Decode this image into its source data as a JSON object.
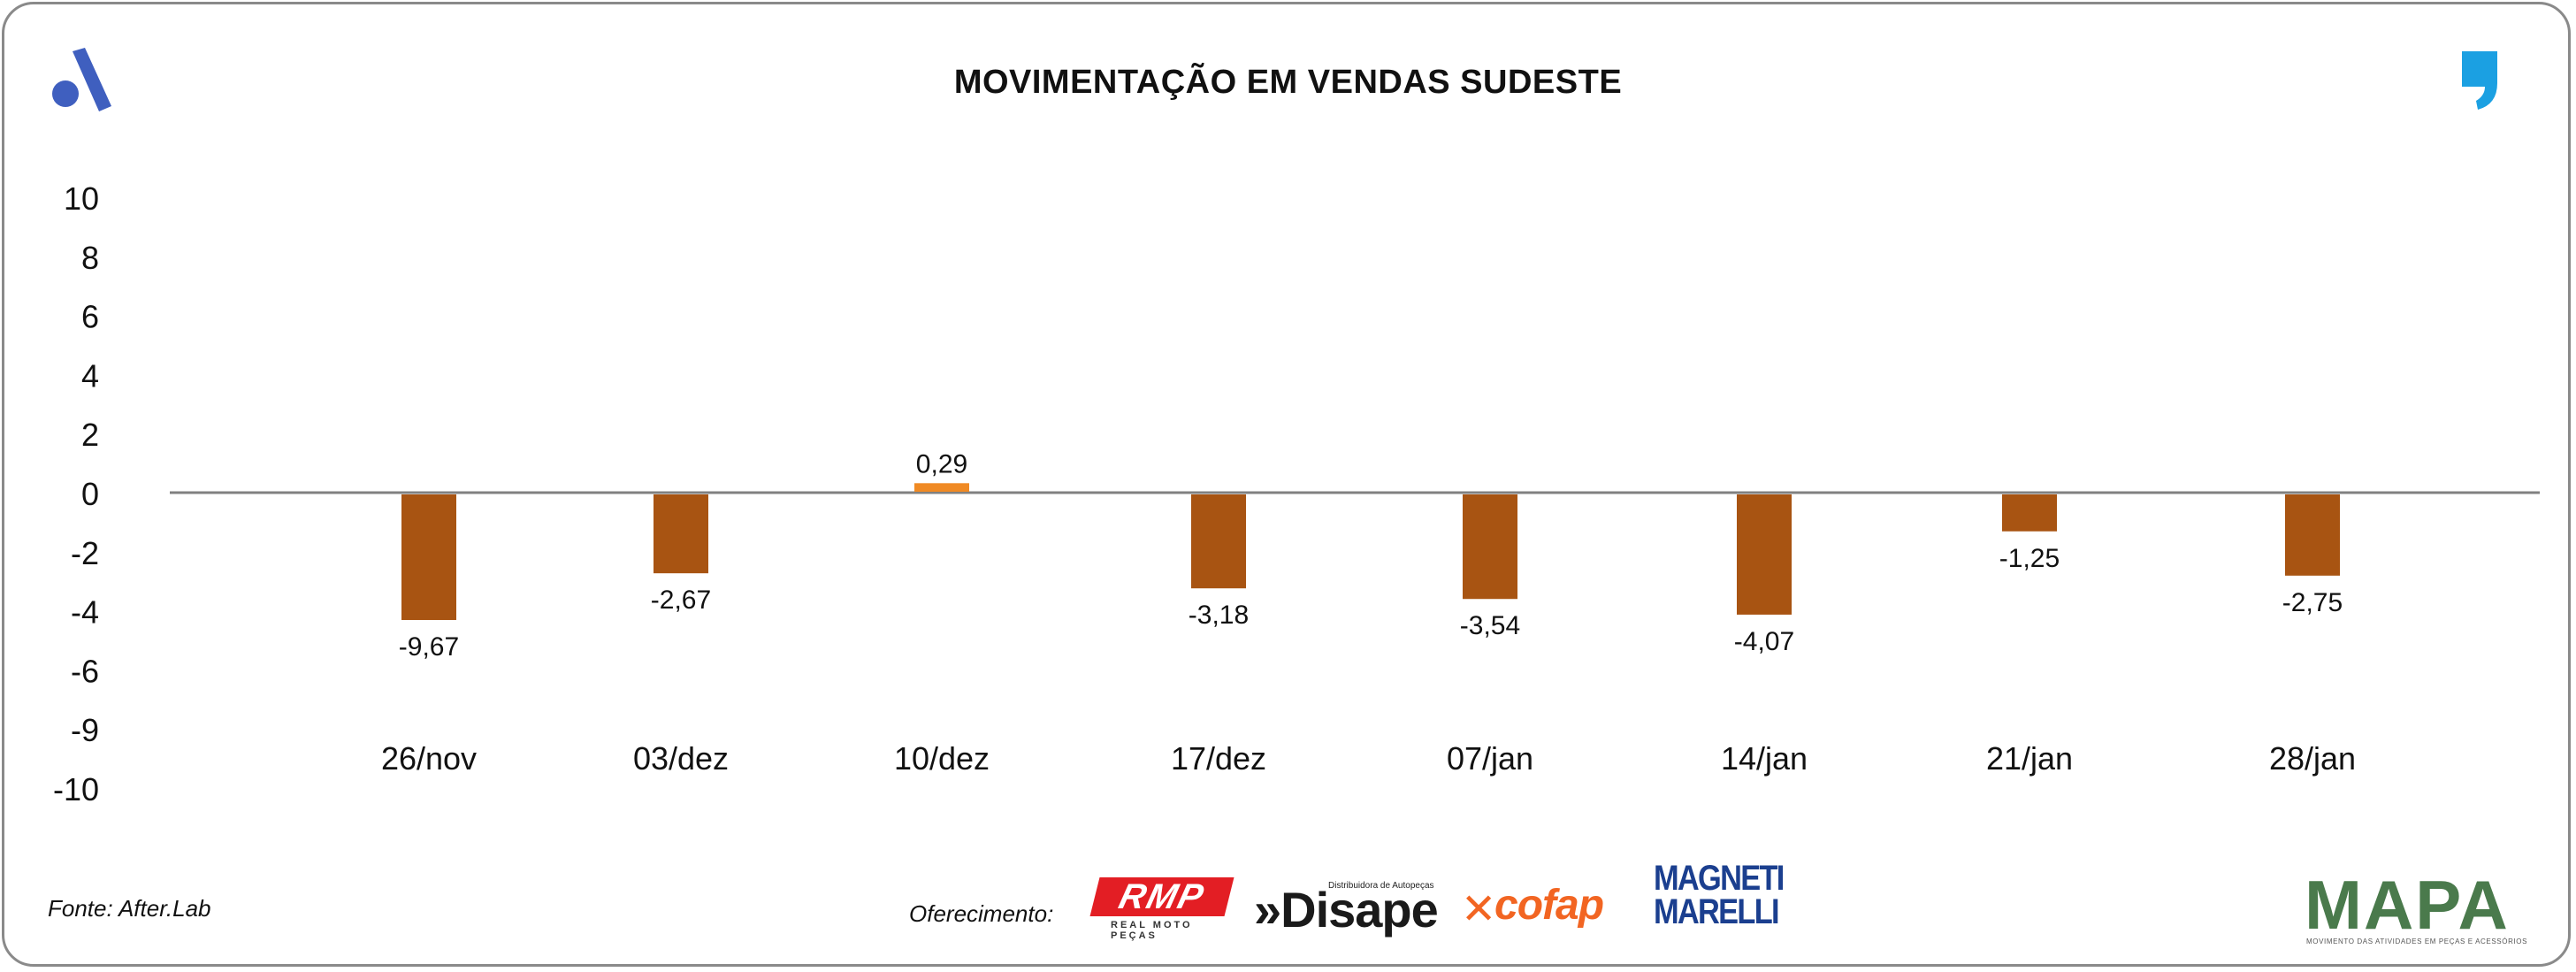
{
  "header": {
    "title": "MOVIMENTAÇÃO EM VENDAS SUDESTE"
  },
  "footer": {
    "source": "Fonte: After.Lab",
    "sponsor_label": "Oferecimento:",
    "sponsors": {
      "rmp": "RMP",
      "rmp_sub": "REAL MOTO PEÇAS",
      "disape": "»Disape",
      "disape_sub": "Distribuidora de Autopeças",
      "cofap": "cofap",
      "magneti_1": "MAGNETI",
      "magneti_2": "MARELLI",
      "mapa": "MAPA",
      "mapa_sub": "MOVIMENTO DAS ATIVIDADES EM PEÇAS E ACESSÓRIOS"
    }
  },
  "colors": {
    "bar_negative": "#a85412",
    "bar_positive": "#f08a24",
    "zero_line": "#808080",
    "brand_blue": "#3f5fbf",
    "quote_blue": "#1ba0e2"
  },
  "chart_data": {
    "type": "bar",
    "title": "MOVIMENTAÇÃO EM VENDAS SUDESTE",
    "categories": [
      "26/nov",
      "03/dez",
      "10/dez",
      "17/dez",
      "07/jan",
      "14/jan",
      "21/jan",
      "28/jan"
    ],
    "values": [
      -9.67,
      -2.67,
      0.29,
      -3.18,
      -3.54,
      -4.07,
      -1.25,
      -2.75
    ],
    "value_labels": [
      "-9,67",
      "-2,67",
      "0,29",
      "-3,18",
      "-3,54",
      "-4,07",
      "-1,25",
      "-2,75"
    ],
    "y_ticks": [
      "10",
      "8",
      "6",
      "4",
      "2",
      "0",
      "-2",
      "-4",
      "-6",
      "-9",
      "-10"
    ],
    "xlabel": "",
    "ylabel": "",
    "grid": false,
    "legend": "none"
  }
}
